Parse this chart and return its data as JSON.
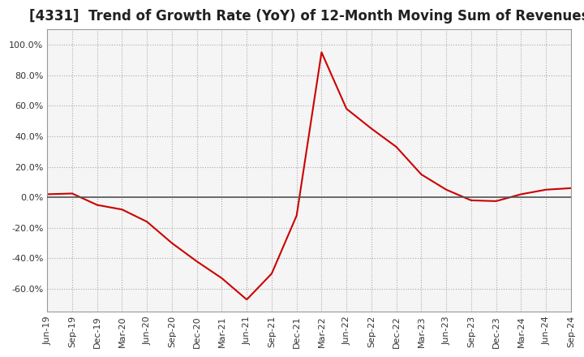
{
  "title": "[4331]  Trend of Growth Rate (YoY) of 12-Month Moving Sum of Revenues",
  "title_fontsize": 12,
  "background_color": "#ffffff",
  "plot_bg_color": "#f5f5f5",
  "grid_color": "#aaaaaa",
  "line_color": "#cc0000",
  "x_labels": [
    "Jun-19",
    "Sep-19",
    "Dec-19",
    "Mar-20",
    "Jun-20",
    "Sep-20",
    "Dec-20",
    "Mar-21",
    "Jun-21",
    "Sep-21",
    "Dec-21",
    "Mar-22",
    "Jun-22",
    "Sep-22",
    "Dec-22",
    "Mar-23",
    "Jun-23",
    "Sep-23",
    "Dec-23",
    "Mar-24",
    "Jun-24",
    "Sep-24"
  ],
  "y_values": [
    2.0,
    2.5,
    -5.0,
    -8.0,
    -16.0,
    -30.0,
    -42.0,
    -53.0,
    -67.0,
    -50.0,
    -12.0,
    95.0,
    58.0,
    45.0,
    33.0,
    15.0,
    5.0,
    -2.0,
    -2.5,
    2.0,
    5.0,
    6.0
  ],
  "ylim": [
    -75,
    110
  ],
  "yticks": [
    -60,
    -40,
    -20,
    0,
    20,
    40,
    60,
    80,
    100
  ],
  "zero_line_color": "#555555",
  "border_color": "#999999"
}
